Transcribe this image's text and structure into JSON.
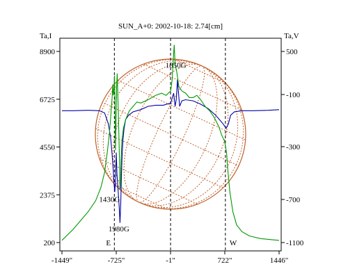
{
  "chart_data": {
    "type": "line",
    "title": "SUN_A+0: 2002-10-18: 2.74[cm]",
    "left_axis_label": "Ta,I",
    "right_axis_label": "Ta,V",
    "x_ticks": [
      {
        "label": "-1449\"",
        "value": -1449
      },
      {
        "label": "-725\"",
        "value": -725
      },
      {
        "label": "-1\"",
        "value": -1
      },
      {
        "label": "722\"",
        "value": 722
      },
      {
        "label": "1446\"",
        "value": 1446
      }
    ],
    "left_ticks": [
      {
        "label": "8900",
        "value": 8900
      },
      {
        "label": "6725",
        "value": 6725
      },
      {
        "label": "4550",
        "value": 4550
      },
      {
        "label": "2375",
        "value": 2375
      },
      {
        "label": "200",
        "value": 200
      }
    ],
    "right_ticks": [
      {
        "label": "500",
        "value": 500
      },
      {
        "label": "-100",
        "value": -100
      },
      {
        "label": "-300",
        "value": -300
      },
      {
        "label": "-700",
        "value": -700
      },
      {
        "label": "-1100",
        "value": -1100
      }
    ],
    "xlim": [
      -1449,
      1446
    ],
    "ylim_left": [
      200,
      8900
    ],
    "ylim_right": [
      -1100,
      500
    ],
    "markers": [
      {
        "label": "E",
        "x": -750
      },
      {
        "label": "-1\"",
        "x": -1
      },
      {
        "label": "W",
        "x": 730
      }
    ],
    "annotations": [
      {
        "label": "1850G",
        "x": 70,
        "y": 8150
      },
      {
        "label": "1430G",
        "x": -815,
        "y": 2050
      },
      {
        "label": "1980G",
        "x": -690,
        "y": 700
      }
    ],
    "series": [
      {
        "color": "#0000aa",
        "axis": "left",
        "points": [
          [
            -1449,
            6200
          ],
          [
            -1300,
            6200
          ],
          [
            -1100,
            6220
          ],
          [
            -950,
            6200
          ],
          [
            -880,
            6100
          ],
          [
            -830,
            5600
          ],
          [
            -800,
            5000
          ],
          [
            -780,
            4200
          ],
          [
            -765,
            3500
          ],
          [
            -755,
            2900
          ],
          [
            -745,
            2500
          ],
          [
            -735,
            3000
          ],
          [
            -725,
            4300
          ],
          [
            -715,
            3300
          ],
          [
            -705,
            2800
          ],
          [
            -695,
            2300
          ],
          [
            -685,
            1800
          ],
          [
            -675,
            1100
          ],
          [
            -665,
            2000
          ],
          [
            -655,
            3400
          ],
          [
            -645,
            4300
          ],
          [
            -635,
            4900
          ],
          [
            -620,
            5400
          ],
          [
            -600,
            5800
          ],
          [
            -560,
            6000
          ],
          [
            -500,
            6150
          ],
          [
            -400,
            6250
          ],
          [
            -300,
            6400
          ],
          [
            -200,
            6450
          ],
          [
            -100,
            6450
          ],
          [
            0,
            6550
          ],
          [
            40,
            7000
          ],
          [
            60,
            6400
          ],
          [
            75,
            6700
          ],
          [
            90,
            7600
          ],
          [
            105,
            7000
          ],
          [
            120,
            6400
          ],
          [
            150,
            6650
          ],
          [
            200,
            6700
          ],
          [
            300,
            6650
          ],
          [
            400,
            6500
          ],
          [
            500,
            6300
          ],
          [
            600,
            6000
          ],
          [
            650,
            5800
          ],
          [
            700,
            5600
          ],
          [
            740,
            5400
          ],
          [
            770,
            5600
          ],
          [
            800,
            6000
          ],
          [
            850,
            6150
          ],
          [
            950,
            6200
          ],
          [
            1100,
            6200
          ],
          [
            1300,
            6220
          ],
          [
            1446,
            6250
          ]
        ]
      },
      {
        "color": "#009900",
        "axis": "left",
        "points": [
          [
            -1449,
            300
          ],
          [
            -1300,
            800
          ],
          [
            -1200,
            1200
          ],
          [
            -1100,
            1600
          ],
          [
            -1000,
            2100
          ],
          [
            -930,
            2700
          ],
          [
            -880,
            3400
          ],
          [
            -845,
            4300
          ],
          [
            -815,
            5200
          ],
          [
            -795,
            6100
          ],
          [
            -780,
            6800
          ],
          [
            -772,
            7400
          ],
          [
            -765,
            6900
          ],
          [
            -755,
            7200
          ],
          [
            -748,
            7800
          ],
          [
            -742,
            6600
          ],
          [
            -735,
            4400
          ],
          [
            -728,
            5600
          ],
          [
            -720,
            7300
          ],
          [
            -712,
            7900
          ],
          [
            -705,
            7000
          ],
          [
            -698,
            6300
          ],
          [
            -690,
            5100
          ],
          [
            -682,
            3900
          ],
          [
            -675,
            2600
          ],
          [
            -668,
            3000
          ],
          [
            -660,
            4000
          ],
          [
            -650,
            4800
          ],
          [
            -630,
            5400
          ],
          [
            -600,
            5800
          ],
          [
            -550,
            6200
          ],
          [
            -500,
            6400
          ],
          [
            -450,
            6600
          ],
          [
            -400,
            6550
          ],
          [
            -300,
            6700
          ],
          [
            -200,
            6900
          ],
          [
            -120,
            7000
          ],
          [
            -60,
            6900
          ],
          [
            0,
            7100
          ],
          [
            20,
            7600
          ],
          [
            35,
            8500
          ],
          [
            48,
            9200
          ],
          [
            60,
            8300
          ],
          [
            80,
            8000
          ],
          [
            110,
            7300
          ],
          [
            150,
            7100
          ],
          [
            200,
            7000
          ],
          [
            250,
            6800
          ],
          [
            300,
            6800
          ],
          [
            350,
            6900
          ],
          [
            400,
            6700
          ],
          [
            460,
            6400
          ],
          [
            520,
            6200
          ],
          [
            580,
            5900
          ],
          [
            640,
            5500
          ],
          [
            680,
            5100
          ],
          [
            720,
            4800
          ],
          [
            745,
            4300
          ],
          [
            765,
            3400
          ],
          [
            790,
            2500
          ],
          [
            830,
            1600
          ],
          [
            880,
            1000
          ],
          [
            950,
            700
          ],
          [
            1050,
            500
          ],
          [
            1200,
            380
          ],
          [
            1350,
            330
          ],
          [
            1446,
            300
          ]
        ]
      }
    ]
  }
}
